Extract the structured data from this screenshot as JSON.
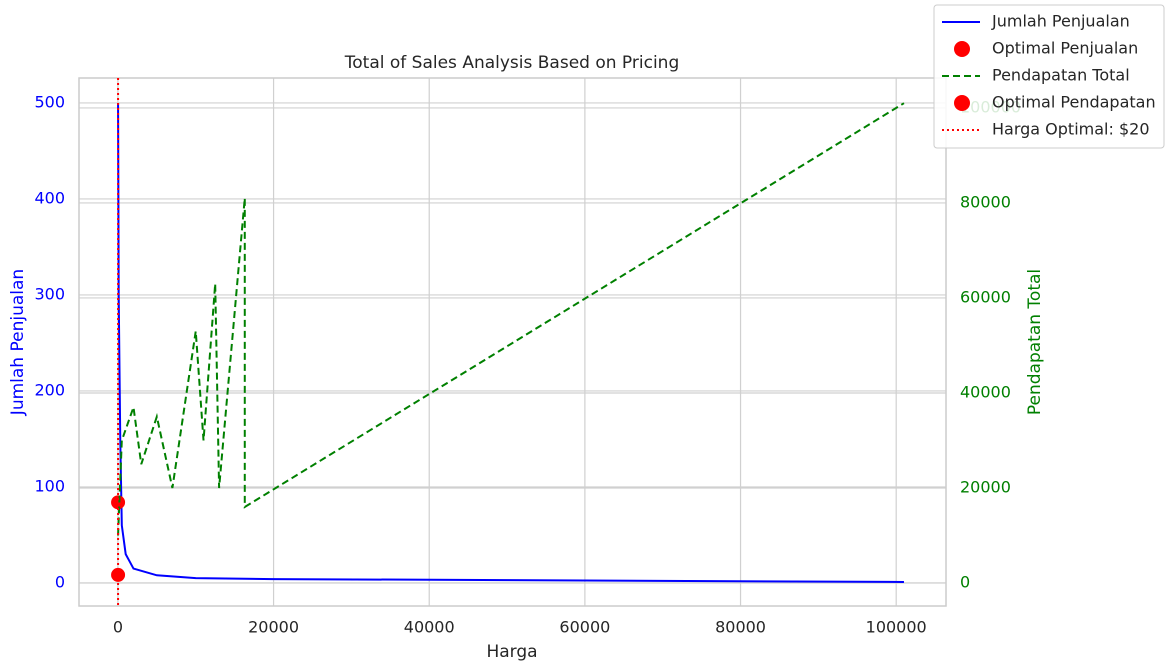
{
  "chart_data": {
    "type": "line",
    "title": "Total of Sales Analysis Based on Pricing",
    "xlabel": "Harga",
    "ylabel": "Jumlah Penjualan",
    "y2label": "Pendapatan Total",
    "xlim": [
      -5000,
      106400
    ],
    "ylim": [
      -24,
      526
    ],
    "y2lim": [
      -4842,
      106300
    ],
    "xticks": [
      0,
      20000,
      40000,
      60000,
      80000,
      100000
    ],
    "yticks": [
      0,
      100,
      200,
      300,
      400,
      500
    ],
    "y2ticks": [
      0,
      20000,
      40000,
      60000,
      80000,
      100000
    ],
    "grid": true,
    "legend": "upper right",
    "series": [
      {
        "name": "Jumlah Penjualan",
        "kind": "line",
        "style": "solid",
        "color": "#0000ff",
        "axis": "y",
        "x": [
          20,
          100,
          300,
          500,
          1000,
          2000,
          5000,
          10000,
          20000,
          50000,
          101000
        ],
        "values": [
          500,
          300,
          150,
          60,
          30,
          15,
          8,
          5,
          4,
          3,
          1
        ]
      },
      {
        "name": "Optimal Penjualan",
        "kind": "scatter",
        "color": "#ff0000",
        "axis": "y",
        "x": [
          20
        ],
        "values": [
          84
        ]
      },
      {
        "name": "Pendapatan Total",
        "kind": "line",
        "style": "dashed",
        "color": "#008000",
        "axis": "y2",
        "x": [
          20,
          500,
          2000,
          3000,
          5000,
          7000,
          10000,
          11000,
          12500,
          13000,
          16300,
          16300,
          101000
        ],
        "values": [
          10000,
          30000,
          37000,
          25000,
          35000,
          20000,
          53000,
          30000,
          63000,
          20000,
          81000,
          16000,
          101000
        ]
      },
      {
        "name": "Optimal Pendapatan",
        "kind": "scatter",
        "color": "#ff0000",
        "axis": "y2",
        "x": [
          20
        ],
        "values": [
          1700
        ]
      },
      {
        "name": "Harga Optimal: $20",
        "kind": "vline",
        "style": "dotted",
        "color": "#ff0000",
        "x": [
          20
        ]
      }
    ]
  }
}
